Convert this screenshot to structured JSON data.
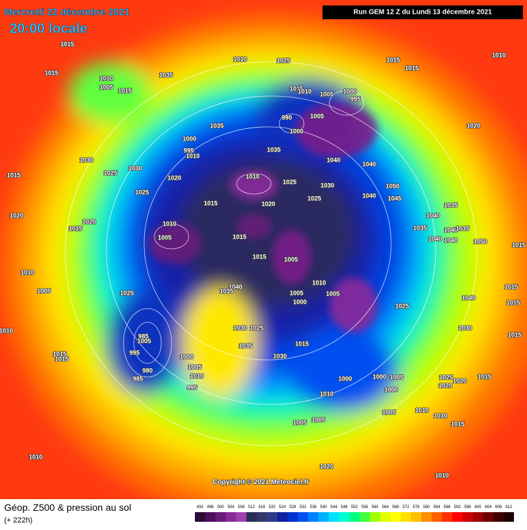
{
  "header": {
    "date": "Mercredi 22 décembre 2021",
    "time": "20:00 locale",
    "run": "Run GEM 12 Z du Lundi 13 décembre 2021"
  },
  "copyright": "Copyright © 2021 Meteociel.fr",
  "footer": {
    "title": "Géop. Z500 & pression au sol",
    "lead": "(+ 222h)"
  },
  "legend": {
    "values": [
      492,
      496,
      500,
      504,
      508,
      512,
      516,
      520,
      524,
      528,
      532,
      536,
      540,
      544,
      548,
      552,
      556,
      560,
      564,
      568,
      572,
      576,
      580,
      584,
      588,
      592,
      596,
      600,
      604,
      608,
      612
    ],
    "colors": [
      "#2d0a3a",
      "#4a0f5a",
      "#6a1a7a",
      "#8a2a9a",
      "#a040b0",
      "#2c2c58",
      "#33366a",
      "#2a3c8a",
      "#1020a0",
      "#0030d0",
      "#0050f0",
      "#0080ff",
      "#00b0ff",
      "#00e0ff",
      "#00ffd0",
      "#00ff80",
      "#40ff40",
      "#a0ff00",
      "#e0ff00",
      "#ffff00",
      "#ffe000",
      "#ffc000",
      "#ff9000",
      "#ff6000",
      "#ff3000",
      "#ff0000",
      "#d00000",
      "#a00000",
      "#700000",
      "#400000",
      "#200000"
    ]
  },
  "map": {
    "pressure_labels": [
      1015,
      1010,
      1025,
      1015,
      1015,
      1010,
      1015,
      1010,
      1035,
      1005,
      1015,
      1015,
      1010,
      1005,
      1000,
      995,
      990,
      1005,
      1000,
      1035,
      1020,
      1000,
      995,
      1010,
      1035,
      1030,
      1030,
      1040,
      1040,
      1015,
      1025,
      1020,
      1010,
      1025,
      1030,
      1050,
      1025,
      1040,
      1045,
      1025,
      1015,
      1020,
      1035,
      1020,
      1020,
      1040,
      1015,
      1010,
      1035,
      1040,
      1035,
      1005,
      1015,
      1040,
      1040,
      1050,
      1015,
      1015,
      1005,
      1010,
      1005,
      1040,
      1035,
      1010,
      1005,
      1025,
      1005,
      1000,
      1015,
      1040,
      1015,
      1025,
      1030,
      1025,
      1010,
      1030,
      985,
      1015,
      1005,
      1015,
      1035,
      995,
      1030,
      1015,
      1015,
      1000,
      1005,
      980,
      1010,
      985,
      1000,
      1000,
      1005,
      1025,
      1020,
      1015,
      1020,
      995,
      1010,
      1000,
      1005,
      1005,
      1010,
      1010,
      1005,
      1015,
      1010,
      1020,
      1010
    ]
  }
}
